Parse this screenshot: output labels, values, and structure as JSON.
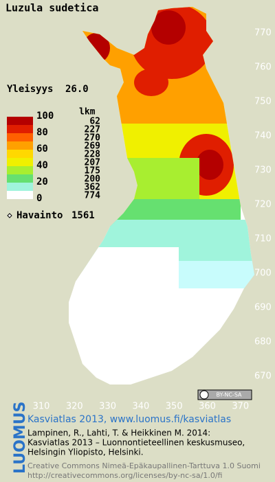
{
  "title": "Luzula sudetica",
  "frequency": {
    "label": "Yleisyys",
    "value": "26.0"
  },
  "legend": {
    "scale": [
      100,
      80,
      60,
      40,
      20,
      0
    ],
    "count_header": "lkm",
    "counts": [
      62,
      227,
      270,
      269,
      228,
      207,
      175,
      200,
      362,
      774
    ],
    "colors": [
      "#b40000",
      "#e01e00",
      "#ff6000",
      "#ffa000",
      "#ffd800",
      "#f0f000",
      "#a8ee30",
      "#66e070",
      "#a0f4dc",
      "#ffffff"
    ]
  },
  "observations": {
    "label": "Havainto",
    "value": 1561
  },
  "x_axis": [
    310,
    320,
    330,
    340,
    350,
    360,
    370
  ],
  "y_axis": [
    670,
    680,
    690,
    700,
    710,
    720,
    730,
    740,
    750,
    760,
    770
  ],
  "license_badge": "BY-NC-SA",
  "logo": "LUOMUS",
  "credit": {
    "heading": "Kasviatlas 2013, www.luomus.fi/kasviatlas",
    "lines": [
      "Lampinen, R., Lahti, T. & Heikkinen M. 2014:",
      "Kasviatlas 2013 – Luonnontieteellinen keskusmuseo,",
      "Helsingin Yliopisto, Helsinki."
    ],
    "license": [
      "Creative Commons Nimeä-Epäkaupallinen-Tarttuva 1.0 Suomi",
      "http://creativecommons.org/licenses/by-nc-sa/1.0/fi"
    ]
  }
}
